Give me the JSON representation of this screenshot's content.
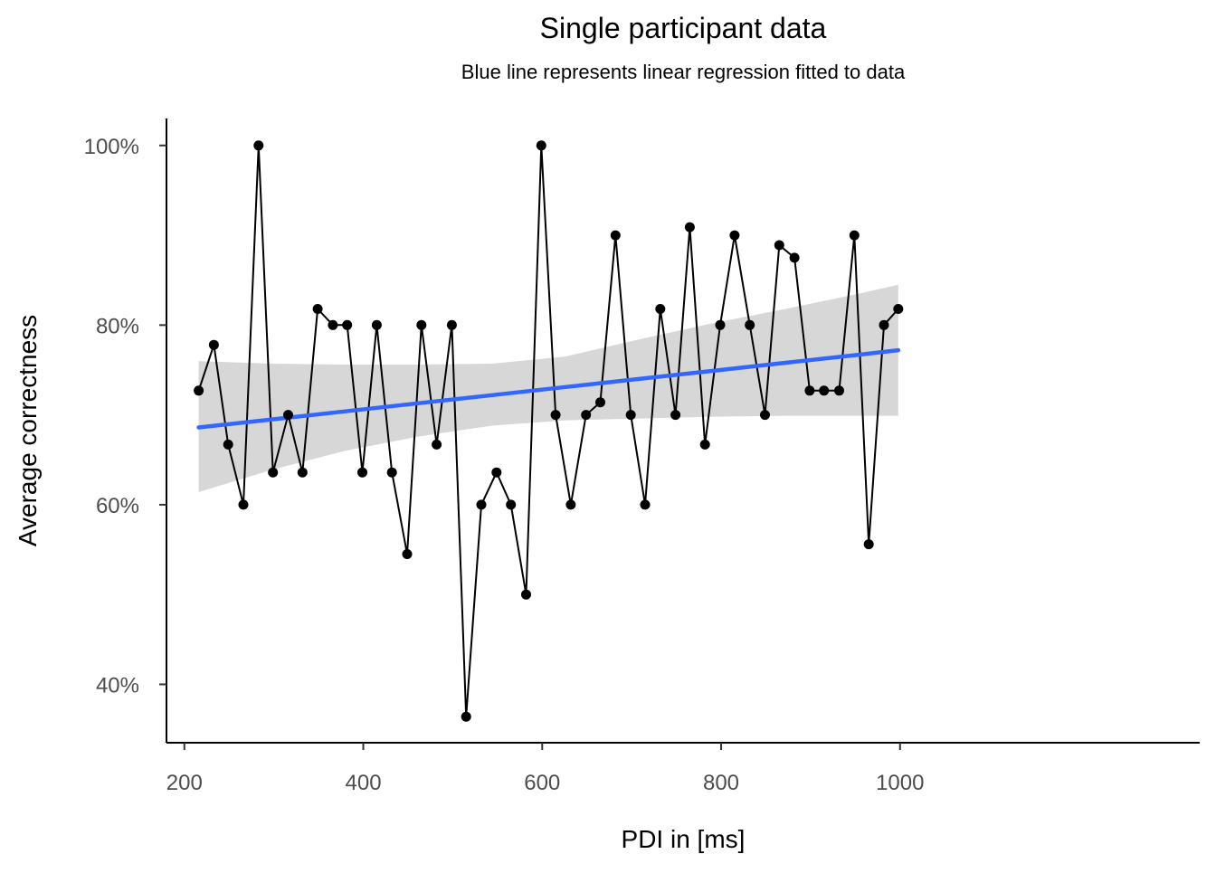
{
  "chart_data": {
    "type": "line",
    "title": "Single participant data",
    "subtitle": "Blue line represents linear regression fitted to data",
    "xlabel": "PDI in [ms]",
    "ylabel": "Average correctness",
    "xlim": [
      180,
      1335
    ],
    "ylim": [
      0.335,
      1.03
    ],
    "x_ticks": [
      200,
      400,
      600,
      800,
      1000
    ],
    "x_tick_labels": [
      "200",
      "400",
      "600",
      "800",
      "1000"
    ],
    "y_ticks": [
      0.4,
      0.6,
      0.8,
      1.0
    ],
    "y_tick_labels": [
      "40%",
      "60%",
      "80%",
      "100%"
    ],
    "grid": false,
    "colors": {
      "data_line": "#000000",
      "regression_line": "#3366FF",
      "confidence_band": "#d3d3d3"
    },
    "series": [
      {
        "x": [
          216,
          233,
          249,
          266,
          283,
          299,
          316,
          332,
          349,
          366,
          382,
          399,
          415,
          432,
          449,
          465,
          482,
          499,
          515,
          532,
          549,
          565,
          582,
          599,
          615,
          632,
          649,
          665,
          682,
          699,
          715,
          732,
          749,
          765,
          782,
          799,
          815,
          832,
          849,
          865,
          882,
          899,
          915,
          932,
          949,
          965,
          982,
          998
        ],
        "y": [
          0.727,
          0.778,
          0.667,
          0.6,
          1.0,
          0.636,
          0.7,
          0.636,
          0.818,
          0.8,
          0.8,
          0.636,
          0.8,
          0.636,
          0.545,
          0.8,
          0.667,
          0.8,
          0.364,
          0.6,
          0.636,
          0.6,
          0.5,
          1.0,
          0.7,
          0.6,
          0.7,
          0.714,
          0.9,
          0.7,
          0.6,
          0.818,
          0.7,
          0.909,
          0.667,
          0.8,
          0.9,
          0.8,
          0.7,
          0.889,
          0.875,
          0.727,
          0.727,
          0.727,
          0.9,
          0.556,
          0.8,
          0.818
        ]
      }
    ],
    "regression": {
      "x": [
        216,
        298,
        380,
        462,
        544,
        626,
        708,
        790,
        872,
        954,
        998
      ],
      "fit": [
        0.686,
        0.695,
        0.704,
        0.713,
        0.722,
        0.731,
        0.74,
        0.749,
        0.758,
        0.767,
        0.772
      ],
      "lower": [
        0.614,
        0.639,
        0.66,
        0.676,
        0.688,
        0.694,
        0.696,
        0.698,
        0.699,
        0.699,
        0.699
      ],
      "upper": [
        0.76,
        0.757,
        0.756,
        0.756,
        0.757,
        0.765,
        0.784,
        0.802,
        0.818,
        0.835,
        0.845
      ]
    }
  }
}
